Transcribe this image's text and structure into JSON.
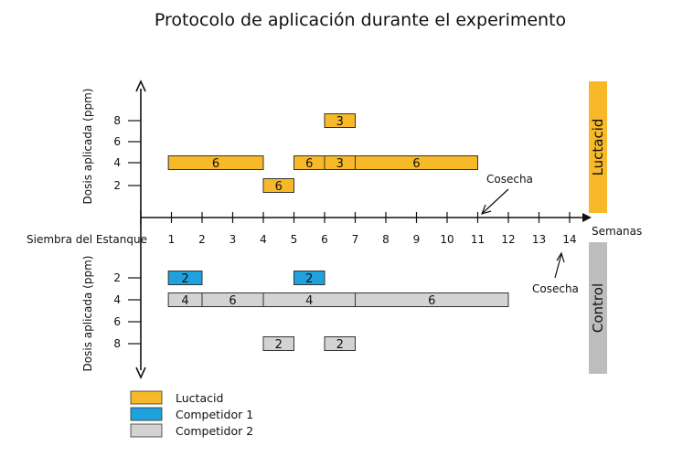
{
  "title": "Protocolo de aplicación durante el experimento",
  "x_axis": {
    "start_label": "Siembra del Estanque",
    "unit_label": "Semanas",
    "ticks": [
      "1",
      "2",
      "3",
      "4",
      "5",
      "6",
      "7",
      "8",
      "9",
      "10",
      "11",
      "12",
      "13",
      "14"
    ]
  },
  "top_panel": {
    "y_label": "Dosis aplicada  (ppm)",
    "y_ticks": [
      "2",
      "4",
      "6",
      "8"
    ],
    "side_label": "Luctacid",
    "harvest_label": "Cosecha",
    "segments": [
      {
        "start": 0.9,
        "end": 4.0,
        "dose": 4,
        "label": "6",
        "product": "luctacid"
      },
      {
        "start": 4.0,
        "end": 5.0,
        "dose": 2,
        "label": "6",
        "product": "luctacid"
      },
      {
        "start": 5.0,
        "end": 6.0,
        "dose": 4,
        "label": "6",
        "product": "luctacid"
      },
      {
        "start": 6.0,
        "end": 7.0,
        "dose": 4,
        "label": "3",
        "product": "luctacid"
      },
      {
        "start": 7.0,
        "end": 11.0,
        "dose": 4,
        "label": "6",
        "product": "luctacid"
      },
      {
        "start": 6.0,
        "end": 7.0,
        "dose": 8,
        "label": "3",
        "product": "luctacid"
      }
    ]
  },
  "bottom_panel": {
    "y_label": "Dosis aplicada  (ppm)",
    "y_ticks": [
      "2",
      "4",
      "6",
      "8"
    ],
    "side_label": "Control",
    "harvest_label": "Cosecha",
    "segments": [
      {
        "start": 0.9,
        "end": 2.0,
        "dose": 2,
        "label": "2",
        "product": "competidor1"
      },
      {
        "start": 5.0,
        "end": 6.0,
        "dose": 2,
        "label": "2",
        "product": "competidor1"
      },
      {
        "start": 0.9,
        "end": 2.0,
        "dose": 4,
        "label": "4",
        "product": "competidor2"
      },
      {
        "start": 2.0,
        "end": 4.0,
        "dose": 4,
        "label": "6",
        "product": "competidor2"
      },
      {
        "start": 4.0,
        "end": 7.0,
        "dose": 4,
        "label": "4",
        "product": "competidor2"
      },
      {
        "start": 7.0,
        "end": 12.0,
        "dose": 4,
        "label": "6",
        "product": "competidor2"
      },
      {
        "start": 4.0,
        "end": 5.0,
        "dose": 8,
        "label": "2",
        "product": "competidor2"
      },
      {
        "start": 6.0,
        "end": 7.0,
        "dose": 8,
        "label": "2",
        "product": "competidor2"
      }
    ]
  },
  "legend": [
    {
      "key": "luctacid",
      "label": "Luctacid"
    },
    {
      "key": "competidor1",
      "label": "Competidor 1"
    },
    {
      "key": "competidor2",
      "label": "Competidor 2"
    }
  ],
  "colors": {
    "luctacid": "#f7b928",
    "competidor1": "#1ea1dc",
    "competidor2": "#d3d3d3",
    "luctacid_side": "#f7b928",
    "control_side": "#bdbdbd",
    "stroke": "#333333"
  }
}
